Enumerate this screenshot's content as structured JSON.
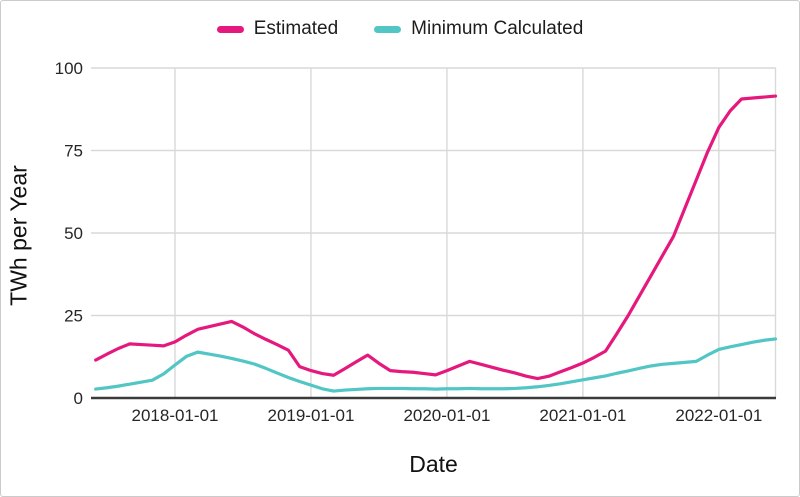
{
  "page": {
    "background": "#ffffff",
    "border_color": "#cbcbcb"
  },
  "legend": {
    "position": "top-center",
    "items": [
      {
        "label": "Estimated",
        "color": "#e5197d"
      },
      {
        "label": "Minimum Calculated",
        "color": "#52c5c5"
      }
    ]
  },
  "colors": {
    "grid": "#d9d9d9",
    "axis_line": "#3b3b3b",
    "tick_text": "#262626"
  },
  "chart_data": {
    "type": "line",
    "title": "",
    "xlabel": "Date",
    "ylabel": "TWh per Year",
    "ylim": [
      0,
      100
    ],
    "grid": true,
    "legend_position": "top-center",
    "y_ticks": [
      0,
      25,
      50,
      75,
      100
    ],
    "x_tick_labels": [
      "2018-01-01",
      "2019-01-01",
      "2020-01-01",
      "2021-01-01",
      "2022-01-01"
    ],
    "x_tick_month_index": [
      7,
      19,
      31,
      43,
      55
    ],
    "x": [
      "2017-06",
      "2017-07",
      "2017-08",
      "2017-09",
      "2017-10",
      "2017-11",
      "2017-12",
      "2018-01",
      "2018-02",
      "2018-03",
      "2018-04",
      "2018-05",
      "2018-06",
      "2018-07",
      "2018-08",
      "2018-09",
      "2018-10",
      "2018-11",
      "2018-12",
      "2019-01",
      "2019-02",
      "2019-03",
      "2019-04",
      "2019-05",
      "2019-06",
      "2019-07",
      "2019-08",
      "2019-09",
      "2019-10",
      "2019-11",
      "2019-12",
      "2020-01",
      "2020-02",
      "2020-03",
      "2020-04",
      "2020-05",
      "2020-06",
      "2020-07",
      "2020-08",
      "2020-09",
      "2020-10",
      "2020-11",
      "2020-12",
      "2021-01",
      "2021-02",
      "2021-03",
      "2021-04",
      "2021-05",
      "2021-06",
      "2021-07",
      "2021-08",
      "2021-09",
      "2021-10",
      "2021-11",
      "2021-12",
      "2022-01",
      "2022-02",
      "2022-03",
      "2022-04",
      "2022-05",
      "2022-06"
    ],
    "series": [
      {
        "name": "Estimated",
        "color": "#e5197d",
        "values": [
          11.5,
          13.3,
          15.0,
          16.4,
          16.2,
          16.0,
          15.8,
          17.0,
          19.0,
          20.8,
          21.6,
          22.4,
          23.2,
          21.5,
          19.5,
          17.8,
          16.2,
          14.5,
          9.5,
          8.3,
          7.4,
          6.9,
          8.9,
          11.0,
          13.0,
          10.5,
          8.3,
          8.0,
          7.8,
          7.4,
          7.0,
          8.3,
          9.7,
          11.1,
          10.2,
          9.3,
          8.4,
          7.6,
          6.6,
          5.9,
          6.6,
          7.9,
          9.2,
          10.6,
          12.3,
          14.2,
          19.5,
          25.0,
          31.0,
          37.0,
          43.0,
          49.0,
          57.5,
          66.0,
          74.5,
          82.0,
          87.0,
          90.6,
          90.9,
          91.2,
          91.5
        ]
      },
      {
        "name": "Minimum Calculated",
        "color": "#52c5c5",
        "values": [
          2.7,
          3.1,
          3.6,
          4.2,
          4.8,
          5.4,
          7.3,
          10.0,
          12.6,
          13.9,
          13.3,
          12.7,
          12.0,
          11.2,
          10.3,
          9.0,
          7.6,
          6.2,
          5.0,
          3.9,
          2.8,
          2.1,
          2.4,
          2.6,
          2.8,
          2.9,
          2.9,
          2.9,
          2.8,
          2.8,
          2.7,
          2.8,
          2.8,
          2.9,
          2.8,
          2.8,
          2.8,
          2.9,
          3.1,
          3.4,
          3.8,
          4.3,
          4.9,
          5.5,
          6.1,
          6.7,
          7.5,
          8.2,
          9.0,
          9.7,
          10.2,
          10.5,
          10.8,
          11.1,
          13.0,
          14.7,
          15.5,
          16.2,
          16.9,
          17.5,
          17.9
        ]
      }
    ]
  }
}
